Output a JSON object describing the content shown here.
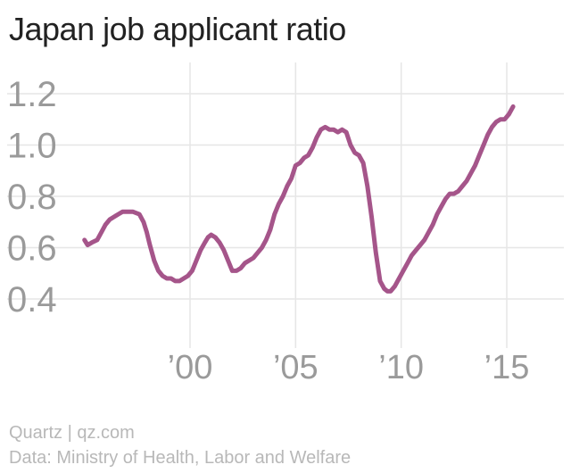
{
  "chart_data": {
    "type": "line",
    "title": "Japan job applicant ratio",
    "xlabel": "",
    "ylabel": "",
    "xlim": [
      1994.5,
      2015.8
    ],
    "ylim": [
      0.4,
      1.2
    ],
    "y_ticks": [
      {
        "value": 1.2,
        "label": "1.2"
      },
      {
        "value": 1.0,
        "label": "1.0"
      },
      {
        "value": 0.8,
        "label": "0.8"
      },
      {
        "value": 0.6,
        "label": "0.6"
      },
      {
        "value": 0.4,
        "label": "0.4"
      }
    ],
    "x_ticks": [
      {
        "value": 2000,
        "label": "’00"
      },
      {
        "value": 2005,
        "label": "’05"
      },
      {
        "value": 2010,
        "label": "’10"
      },
      {
        "value": 2015,
        "label": "’15"
      }
    ],
    "grid": true,
    "legend": "none",
    "series": [
      {
        "color": "#a5558a",
        "x": [
          1995.0,
          1995.15,
          1995.35,
          1995.6,
          1995.8,
          1996.0,
          1996.2,
          1996.4,
          1996.6,
          1996.8,
          1997.0,
          1997.3,
          1997.6,
          1997.8,
          1997.95,
          1998.1,
          1998.3,
          1998.5,
          1998.7,
          1998.9,
          1999.1,
          1999.3,
          1999.5,
          1999.7,
          1999.9,
          2000.1,
          2000.3,
          2000.5,
          2000.7,
          2000.85,
          2001.0,
          2001.2,
          2001.4,
          2001.6,
          2001.8,
          2002.0,
          2002.2,
          2002.4,
          2002.6,
          2002.8,
          2003.0,
          2003.2,
          2003.4,
          2003.6,
          2003.8,
          2004.0,
          2004.2,
          2004.4,
          2004.6,
          2004.8,
          2005.0,
          2005.2,
          2005.4,
          2005.6,
          2005.8,
          2006.0,
          2006.2,
          2006.4,
          2006.6,
          2006.8,
          2007.0,
          2007.2,
          2007.4,
          2007.6,
          2007.8,
          2008.0,
          2008.2,
          2008.4,
          2008.6,
          2008.8,
          2009.0,
          2009.2,
          2009.35,
          2009.5,
          2009.7,
          2009.9,
          2010.1,
          2010.3,
          2010.5,
          2010.7,
          2010.9,
          2011.1,
          2011.3,
          2011.5,
          2011.7,
          2011.9,
          2012.1,
          2012.3,
          2012.5,
          2012.7,
          2012.9,
          2013.1,
          2013.3,
          2013.5,
          2013.7,
          2013.9,
          2014.1,
          2014.3,
          2014.5,
          2014.7,
          2014.9,
          2015.1,
          2015.3
        ],
        "values": [
          0.63,
          0.61,
          0.62,
          0.63,
          0.66,
          0.69,
          0.71,
          0.72,
          0.73,
          0.74,
          0.74,
          0.74,
          0.73,
          0.7,
          0.66,
          0.61,
          0.55,
          0.51,
          0.49,
          0.48,
          0.48,
          0.47,
          0.47,
          0.48,
          0.49,
          0.51,
          0.55,
          0.59,
          0.62,
          0.64,
          0.65,
          0.64,
          0.62,
          0.59,
          0.55,
          0.51,
          0.51,
          0.52,
          0.54,
          0.55,
          0.56,
          0.58,
          0.6,
          0.63,
          0.67,
          0.73,
          0.77,
          0.8,
          0.84,
          0.87,
          0.92,
          0.93,
          0.95,
          0.96,
          0.99,
          1.03,
          1.06,
          1.07,
          1.06,
          1.06,
          1.05,
          1.06,
          1.05,
          1.0,
          0.97,
          0.96,
          0.93,
          0.84,
          0.72,
          0.58,
          0.47,
          0.44,
          0.43,
          0.43,
          0.45,
          0.48,
          0.51,
          0.54,
          0.57,
          0.59,
          0.61,
          0.63,
          0.66,
          0.69,
          0.73,
          0.76,
          0.79,
          0.81,
          0.81,
          0.82,
          0.84,
          0.86,
          0.89,
          0.92,
          0.96,
          1.0,
          1.04,
          1.07,
          1.09,
          1.1,
          1.1,
          1.12,
          1.15
        ]
      }
    ]
  },
  "footer": {
    "credit": "Quartz | qz.com",
    "source": "Data: Ministry of Health, Labor and Welfare"
  },
  "colors": {
    "line": "#a5558a",
    "grid": "#e6e6e6",
    "tick_text": "#9a9a9a",
    "title_text": "#222222",
    "footer_text": "#b8b8b8"
  }
}
